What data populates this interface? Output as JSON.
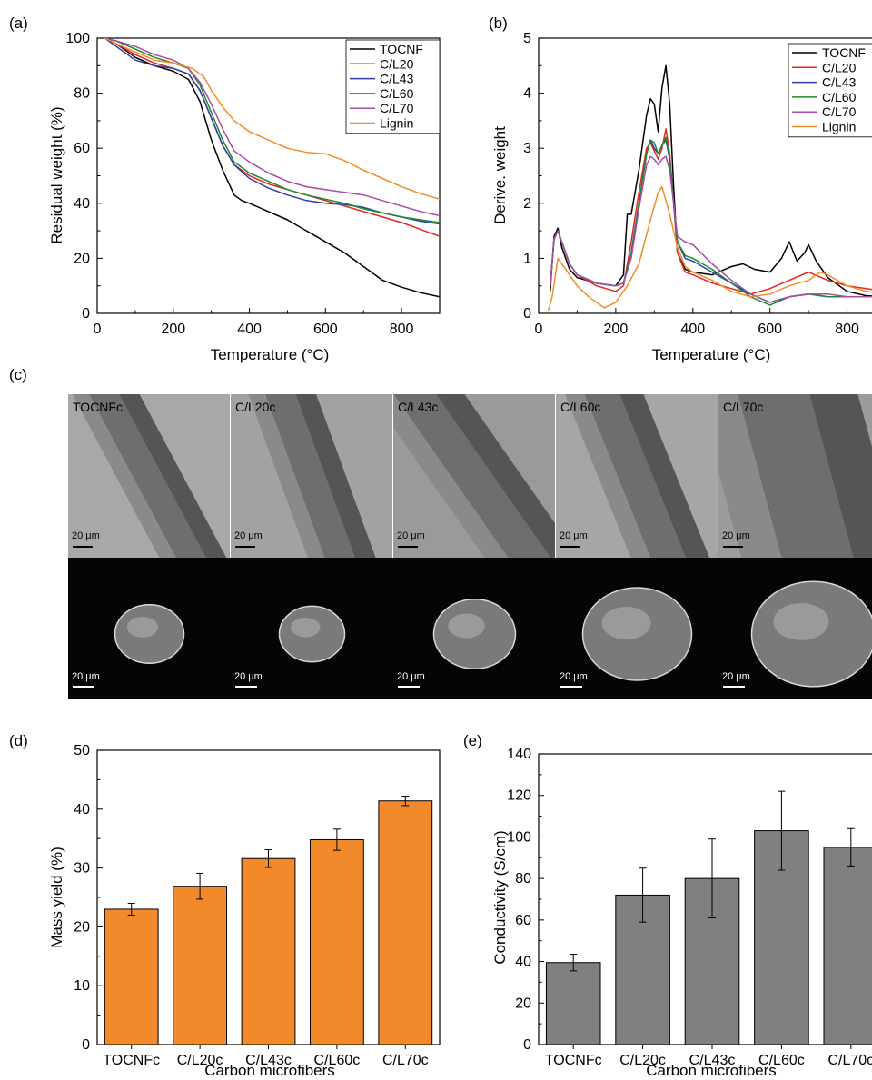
{
  "panels": [
    {
      "id": "a",
      "label": "(a)"
    },
    {
      "id": "b",
      "label": "(b)"
    },
    {
      "id": "c",
      "label": "(c)"
    },
    {
      "id": "d",
      "label": "(d)"
    },
    {
      "id": "e",
      "label": "(e)"
    }
  ],
  "micrographs": {
    "samples": [
      "TOCNFc",
      "C/L20c",
      "C/L43c",
      "C/L60c",
      "C/L70c"
    ],
    "scale_label": "20 μm"
  },
  "chart_data": [
    {
      "panel": "a",
      "type": "line",
      "xlabel": "Temperature (°C)",
      "ylabel": "Residual weight (%)",
      "xlim": [
        0,
        900
      ],
      "ylim": [
        0,
        100
      ],
      "xticks": [
        0,
        200,
        400,
        600,
        800
      ],
      "yticks": [
        0,
        20,
        40,
        60,
        80,
        100
      ],
      "legend_position": "top-right",
      "series": [
        {
          "name": "TOCNF",
          "color": "#000000",
          "x": [
            20,
            50,
            100,
            150,
            200,
            240,
            270,
            300,
            330,
            360,
            380,
            400,
            450,
            500,
            550,
            600,
            650,
            680,
            700,
            750,
            800,
            850,
            900
          ],
          "y": [
            100,
            98,
            93,
            90,
            88,
            85,
            77,
            63,
            52,
            43,
            41,
            40,
            37,
            34,
            30,
            26,
            22,
            19,
            17,
            12,
            9.5,
            7.5,
            6
          ]
        },
        {
          "name": "C/L20",
          "color": "#e8251e",
          "x": [
            20,
            50,
            100,
            150,
            200,
            240,
            270,
            300,
            330,
            360,
            400,
            450,
            500,
            550,
            600,
            650,
            700,
            750,
            800,
            850,
            900
          ],
          "y": [
            100,
            98,
            94,
            91,
            89,
            87,
            81,
            71,
            61,
            54,
            50,
            47,
            45,
            43,
            41,
            39,
            37,
            35,
            33,
            30.5,
            28
          ]
        },
        {
          "name": "C/L43",
          "color": "#2c3fa8",
          "x": [
            20,
            50,
            100,
            150,
            200,
            240,
            270,
            300,
            330,
            360,
            400,
            450,
            500,
            550,
            600,
            650,
            700,
            750,
            800,
            850,
            900
          ],
          "y": [
            100,
            97,
            92,
            90,
            89,
            87,
            81,
            71,
            61,
            54,
            49,
            45.5,
            43,
            41,
            40,
            39.5,
            38.5,
            36.5,
            35,
            33.5,
            32.5
          ]
        },
        {
          "name": "C/L60",
          "color": "#1c8a2c",
          "x": [
            20,
            50,
            100,
            150,
            200,
            240,
            270,
            300,
            330,
            360,
            400,
            450,
            500,
            550,
            600,
            650,
            700,
            750,
            800,
            850,
            900
          ],
          "y": [
            100,
            99,
            96,
            93,
            91,
            89,
            83,
            73,
            63,
            55,
            51,
            48,
            45,
            43,
            41.5,
            40,
            38,
            36.5,
            35,
            34,
            33
          ]
        },
        {
          "name": "C/L70",
          "color": "#a64ca8",
          "x": [
            20,
            50,
            100,
            150,
            200,
            240,
            270,
            300,
            330,
            360,
            400,
            450,
            500,
            550,
            600,
            650,
            700,
            750,
            800,
            850,
            900
          ],
          "y": [
            100,
            99,
            97,
            94,
            92,
            89,
            84,
            76,
            67,
            59,
            55,
            51,
            48,
            46,
            45,
            44,
            43,
            41,
            39,
            37,
            35.5
          ]
        },
        {
          "name": "Lignin",
          "color": "#f28c28",
          "x": [
            20,
            50,
            100,
            150,
            200,
            250,
            280,
            300,
            330,
            360,
            400,
            450,
            500,
            550,
            600,
            650,
            700,
            750,
            800,
            850,
            900
          ],
          "y": [
            100,
            98,
            95,
            92,
            91,
            89,
            86,
            81,
            75,
            70,
            66,
            63,
            60,
            58.5,
            58,
            55.5,
            52,
            49,
            46,
            43.5,
            41.5
          ]
        }
      ]
    },
    {
      "panel": "b",
      "type": "line",
      "xlabel": "Temperature (°C)",
      "ylabel": "Derive. weight",
      "xlim": [
        0,
        900
      ],
      "ylim": [
        0,
        5
      ],
      "xticks": [
        0,
        200,
        400,
        600,
        800
      ],
      "yticks": [
        0,
        1,
        2,
        3,
        4,
        5
      ],
      "legend_position": "top-right",
      "series": [
        {
          "name": "TOCNF",
          "color": "#000000",
          "x": [
            30,
            40,
            50,
            60,
            80,
            100,
            150,
            200,
            220,
            230,
            240,
            260,
            280,
            290,
            300,
            310,
            320,
            330,
            340,
            350,
            360,
            380,
            400,
            450,
            500,
            530,
            560,
            600,
            630,
            650,
            670,
            690,
            700,
            720,
            750,
            800,
            850,
            900
          ],
          "y": [
            0.4,
            1.4,
            1.55,
            1.2,
            0.8,
            0.65,
            0.55,
            0.5,
            0.7,
            1.8,
            1.8,
            2.6,
            3.6,
            3.9,
            3.8,
            3.3,
            4.1,
            4.5,
            3.8,
            2.3,
            1.1,
            0.8,
            0.75,
            0.7,
            0.85,
            0.9,
            0.8,
            0.75,
            1.0,
            1.3,
            0.95,
            1.1,
            1.25,
            0.95,
            0.65,
            0.4,
            0.32,
            0.3
          ]
        },
        {
          "name": "C/L20",
          "color": "#e8251e",
          "x": [
            30,
            40,
            50,
            60,
            80,
            100,
            150,
            200,
            220,
            240,
            260,
            280,
            290,
            300,
            310,
            320,
            330,
            340,
            350,
            360,
            380,
            400,
            450,
            500,
            550,
            600,
            650,
            700,
            750,
            800,
            850,
            900
          ],
          "y": [
            0.5,
            1.35,
            1.5,
            1.3,
            0.9,
            0.7,
            0.5,
            0.4,
            0.5,
            1.3,
            2.2,
            3.0,
            3.1,
            2.95,
            2.8,
            3.0,
            3.35,
            2.9,
            2.0,
            1.1,
            0.75,
            0.7,
            0.55,
            0.45,
            0.35,
            0.45,
            0.6,
            0.75,
            0.6,
            0.5,
            0.45,
            0.4
          ]
        },
        {
          "name": "C/L43",
          "color": "#2c3fa8",
          "x": [
            30,
            40,
            50,
            60,
            80,
            100,
            150,
            200,
            220,
            240,
            260,
            280,
            290,
            300,
            310,
            320,
            330,
            340,
            350,
            360,
            380,
            400,
            450,
            500,
            550,
            600,
            650,
            700,
            750,
            800,
            850,
            900
          ],
          "y": [
            0.5,
            1.35,
            1.5,
            1.3,
            0.9,
            0.7,
            0.55,
            0.5,
            0.55,
            1.1,
            2.0,
            2.9,
            3.15,
            3.0,
            2.9,
            3.05,
            3.15,
            2.8,
            2.0,
            1.3,
            1.0,
            0.95,
            0.75,
            0.55,
            0.35,
            0.2,
            0.3,
            0.35,
            0.3,
            0.3,
            0.3,
            0.3
          ]
        },
        {
          "name": "C/L60",
          "color": "#1c8a2c",
          "x": [
            30,
            40,
            50,
            60,
            80,
            100,
            150,
            200,
            220,
            240,
            260,
            280,
            290,
            300,
            310,
            320,
            330,
            340,
            350,
            360,
            380,
            400,
            450,
            500,
            550,
            600,
            650,
            700,
            750,
            800,
            850,
            900
          ],
          "y": [
            0.5,
            1.35,
            1.5,
            1.3,
            0.9,
            0.7,
            0.55,
            0.5,
            0.55,
            1.1,
            2.0,
            2.9,
            3.15,
            3.1,
            2.9,
            3.05,
            3.2,
            2.8,
            2.0,
            1.3,
            1.05,
            1.0,
            0.8,
            0.55,
            0.3,
            0.15,
            0.3,
            0.35,
            0.3,
            0.3,
            0.3,
            0.3
          ]
        },
        {
          "name": "C/L70",
          "color": "#a64ca8",
          "x": [
            30,
            40,
            50,
            60,
            80,
            100,
            150,
            200,
            220,
            240,
            260,
            280,
            290,
            300,
            310,
            320,
            330,
            340,
            350,
            360,
            380,
            400,
            450,
            500,
            550,
            600,
            650,
            700,
            750,
            800,
            850,
            900
          ],
          "y": [
            0.5,
            1.35,
            1.5,
            1.3,
            0.9,
            0.7,
            0.55,
            0.5,
            0.55,
            1.0,
            1.9,
            2.7,
            2.85,
            2.8,
            2.7,
            2.8,
            2.85,
            2.6,
            2.0,
            1.4,
            1.3,
            1.25,
            0.9,
            0.6,
            0.35,
            0.2,
            0.3,
            0.35,
            0.35,
            0.3,
            0.3,
            0.3
          ]
        },
        {
          "name": "Lignin",
          "color": "#f28c28",
          "x": [
            25,
            35,
            50,
            80,
            100,
            130,
            170,
            200,
            230,
            260,
            290,
            310,
            320,
            340,
            360,
            380,
            400,
            450,
            500,
            550,
            600,
            650,
            700,
            730,
            750,
            800,
            850,
            900
          ],
          "y": [
            0.05,
            0.3,
            1.0,
            0.7,
            0.5,
            0.3,
            0.1,
            0.2,
            0.5,
            0.9,
            1.7,
            2.2,
            2.3,
            1.8,
            1.2,
            0.85,
            0.75,
            0.6,
            0.4,
            0.3,
            0.35,
            0.5,
            0.6,
            0.75,
            0.7,
            0.5,
            0.4,
            0.35
          ]
        }
      ]
    },
    {
      "panel": "d",
      "type": "bar",
      "xlabel": "Carbon microfibers",
      "ylabel": "Mass yield (%)",
      "ylim": [
        0,
        50
      ],
      "yticks": [
        0,
        10,
        20,
        30,
        40,
        50
      ],
      "bar_color": "#f28a2c",
      "categories": [
        "TOCNFc",
        "C/L20c",
        "C/L43c",
        "C/L60c",
        "C/L70c"
      ],
      "values": [
        23.0,
        26.9,
        31.6,
        34.8,
        41.4
      ],
      "errors": [
        1.0,
        2.2,
        1.5,
        1.8,
        0.8
      ]
    },
    {
      "panel": "e",
      "type": "bar",
      "xlabel": "Carbon microfibers",
      "ylabel": "Conductivity (S/cm)",
      "ylim": [
        0,
        140
      ],
      "yticks": [
        0,
        20,
        40,
        60,
        80,
        100,
        120,
        140
      ],
      "bar_color": "#808080",
      "categories": [
        "TOCNFc",
        "C/L20c",
        "C/L43c",
        "C/L60c",
        "C/L70c"
      ],
      "values": [
        39.5,
        72,
        80,
        103,
        95
      ],
      "errors": [
        4,
        13,
        19,
        19,
        9
      ]
    }
  ]
}
